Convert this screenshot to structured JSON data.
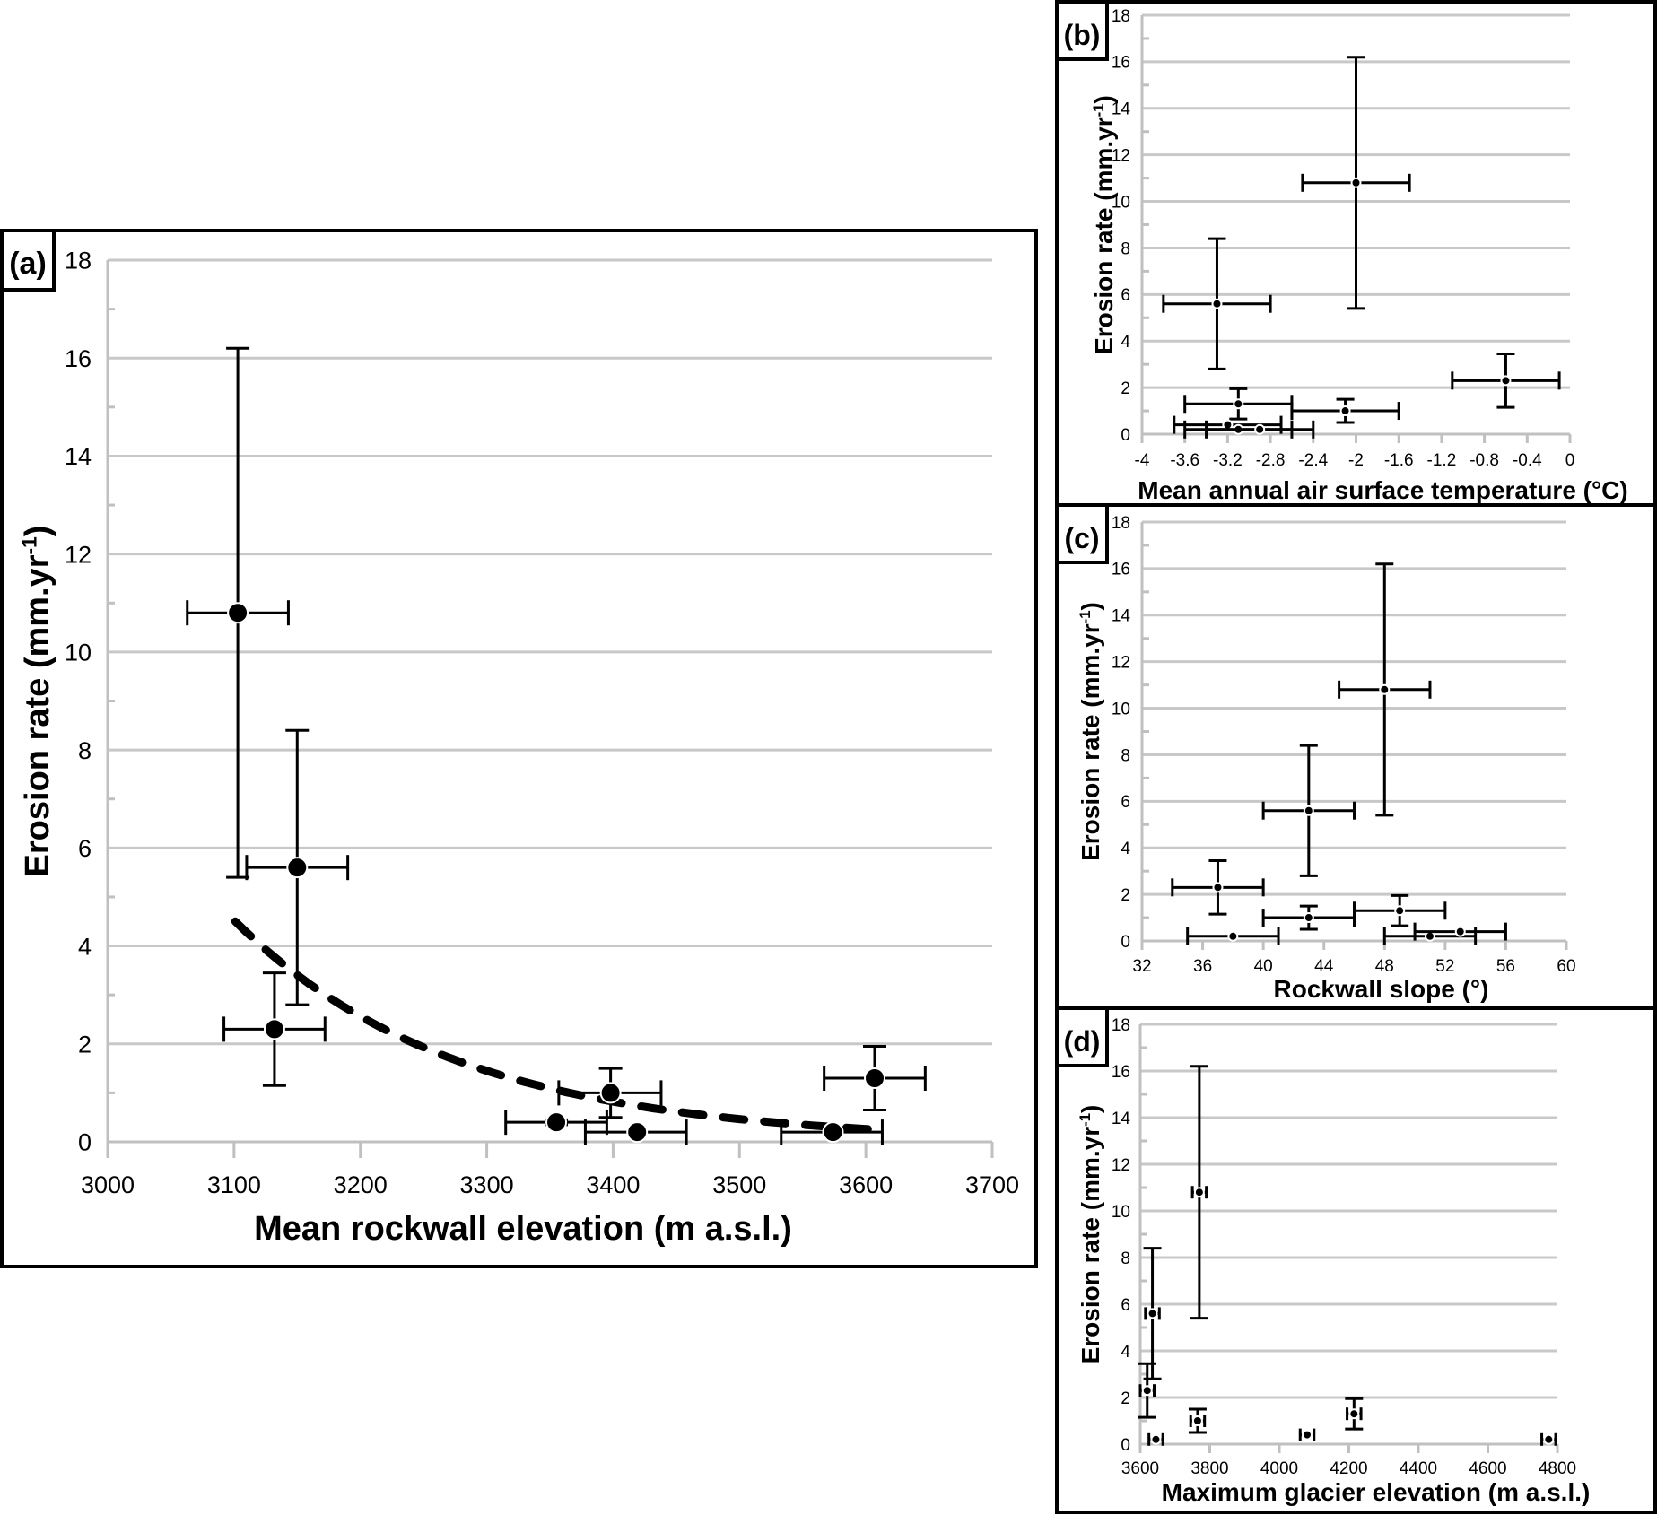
{
  "figure": {
    "panels": [
      {
        "id": "a",
        "label": "(a)"
      },
      {
        "id": "b",
        "label": "(b)"
      },
      {
        "id": "c",
        "label": "(c)"
      },
      {
        "id": "d",
        "label": "(d)"
      }
    ]
  },
  "chart_data": [
    {
      "panel": "(a)",
      "type": "scatter",
      "title": "",
      "xlabel": "Mean rockwall elevation (m a.s.l.)",
      "ylabel": "Erosion rate (mm.yr-1)",
      "ylabel_main": "Erosion rate (mm.yr",
      "ylabel_sup": "-1",
      "ylabel_close": ")",
      "xlim": [
        3000,
        3700
      ],
      "ylim": [
        0,
        18
      ],
      "xticks": [
        3000,
        3100,
        3200,
        3300,
        3400,
        3500,
        3600,
        3700
      ],
      "yticks": [
        0,
        2,
        4,
        6,
        8,
        10,
        12,
        14,
        16,
        18
      ],
      "minor_yticks": true,
      "grid": "horizontal",
      "points": [
        {
          "x": 3103,
          "y": 10.8,
          "xerr": [
            3063,
            3143
          ],
          "yerr": [
            5.4,
            16.2
          ]
        },
        {
          "x": 3150,
          "y": 5.6,
          "xerr": [
            3110,
            3190
          ],
          "yerr": [
            2.8,
            8.4
          ]
        },
        {
          "x": 3132,
          "y": 2.3,
          "xerr": [
            3092,
            3172
          ],
          "yerr": [
            1.15,
            3.45
          ]
        },
        {
          "x": 3355,
          "y": 0.4,
          "xerr": [
            3315,
            3395
          ],
          "yerr": [
            0.35,
            0.45
          ]
        },
        {
          "x": 3398,
          "y": 1.0,
          "xerr": [
            3357,
            3438
          ],
          "yerr": [
            0.5,
            1.5
          ]
        },
        {
          "x": 3419,
          "y": 0.2,
          "xerr": [
            3378,
            3458
          ],
          "yerr": [
            0.17,
            0.23
          ]
        },
        {
          "x": 3574,
          "y": 0.2,
          "xerr": [
            3533,
            3613
          ],
          "yerr": [
            0.17,
            0.23
          ]
        },
        {
          "x": 3607,
          "y": 1.3,
          "xerr": [
            3567,
            3647
          ],
          "yerr": [
            0.65,
            1.95
          ]
        }
      ],
      "trendline": {
        "type": "exponential",
        "style": "dashed",
        "x_range": [
          3101,
          3609
        ],
        "y_start": 4.5,
        "y_end": 0.25
      }
    },
    {
      "panel": "(b)",
      "type": "scatter",
      "title": "",
      "xlabel": "Mean annual air surface temperature (°C)",
      "ylabel": "Erosion rate (mm.yr-1)",
      "ylabel_main": "Erosion rate (mm.yr",
      "ylabel_sup": "-1",
      "ylabel_close": ")",
      "xlim": [
        -4,
        0
      ],
      "ylim": [
        0,
        18
      ],
      "xticks": [
        -4,
        -3.6,
        -3.2,
        -2.8,
        -2.4,
        -2,
        -1.6,
        -1.2,
        -0.8,
        -0.4,
        0
      ],
      "xtick_labels": [
        "-4",
        "-3.6",
        "-3.2",
        "-2.8",
        "-2.4",
        "-2",
        "-1.6",
        "-1.2",
        "-0.8",
        "-0.4",
        "0"
      ],
      "yticks": [
        0,
        2,
        4,
        6,
        8,
        10,
        12,
        14,
        16,
        18
      ],
      "grid": "horizontal",
      "points": [
        {
          "x": -3.3,
          "y": 5.6,
          "xerr": [
            -3.8,
            -2.8
          ],
          "yerr": [
            2.8,
            8.4
          ]
        },
        {
          "x": -2.0,
          "y": 10.8,
          "xerr": [
            -2.5,
            -1.5
          ],
          "yerr": [
            5.4,
            16.2
          ]
        },
        {
          "x": -0.6,
          "y": 2.3,
          "xerr": [
            -1.1,
            -0.1
          ],
          "yerr": [
            1.15,
            3.45
          ]
        },
        {
          "x": -3.1,
          "y": 1.3,
          "xerr": [
            -3.6,
            -2.6
          ],
          "yerr": [
            0.65,
            1.95
          ]
        },
        {
          "x": -2.1,
          "y": 1.0,
          "xerr": [
            -2.6,
            -1.6
          ],
          "yerr": [
            0.5,
            1.5
          ]
        },
        {
          "x": -3.2,
          "y": 0.4,
          "xerr": [
            -3.7,
            -2.7
          ],
          "yerr": [
            0.35,
            0.45
          ]
        },
        {
          "x": -3.1,
          "y": 0.2,
          "xerr": [
            -3.6,
            -2.6
          ],
          "yerr": [
            0.17,
            0.23
          ]
        },
        {
          "x": -2.9,
          "y": 0.2,
          "xerr": [
            -3.4,
            -2.4
          ],
          "yerr": [
            0.17,
            0.23
          ]
        }
      ]
    },
    {
      "panel": "(c)",
      "type": "scatter",
      "title": "",
      "xlabel": "Rockwall slope (°)",
      "ylabel": "Erosion rate (mm.yr-1)",
      "ylabel_main": "Erosion rate (mm.yr",
      "ylabel_sup": "-1",
      "ylabel_close": ")",
      "xlim": [
        32,
        60
      ],
      "ylim": [
        0,
        18
      ],
      "xticks": [
        32,
        36,
        40,
        44,
        48,
        52,
        56,
        60
      ],
      "yticks": [
        0,
        2,
        4,
        6,
        8,
        10,
        12,
        14,
        16,
        18
      ],
      "grid": "horizontal",
      "points": [
        {
          "x": 48,
          "y": 10.8,
          "xerr": [
            45,
            51
          ],
          "yerr": [
            5.4,
            16.2
          ]
        },
        {
          "x": 43,
          "y": 5.6,
          "xerr": [
            40,
            46
          ],
          "yerr": [
            2.8,
            8.4
          ]
        },
        {
          "x": 37,
          "y": 2.3,
          "xerr": [
            34,
            40
          ],
          "yerr": [
            1.15,
            3.45
          ]
        },
        {
          "x": 43,
          "y": 1.0,
          "xerr": [
            40,
            46
          ],
          "yerr": [
            0.5,
            1.5
          ]
        },
        {
          "x": 49,
          "y": 1.3,
          "xerr": [
            46,
            52
          ],
          "yerr": [
            0.65,
            1.95
          ]
        },
        {
          "x": 38,
          "y": 0.2,
          "xerr": [
            35,
            41
          ],
          "yerr": [
            0.17,
            0.23
          ]
        },
        {
          "x": 51,
          "y": 0.2,
          "xerr": [
            48,
            54
          ],
          "yerr": [
            0.17,
            0.23
          ]
        },
        {
          "x": 53,
          "y": 0.4,
          "xerr": [
            50,
            56
          ],
          "yerr": [
            0.35,
            0.45
          ]
        }
      ]
    },
    {
      "panel": "(d)",
      "type": "scatter",
      "title": "",
      "xlabel": "Maximum glacier elevation (m a.s.l.)",
      "ylabel": "Erosion rate (mm.yr-1)",
      "ylabel_main": "Erosion rate (mm.yr",
      "ylabel_sup": "-1",
      "ylabel_close": ")",
      "xlim": [
        3600,
        4800
      ],
      "ylim": [
        0,
        18
      ],
      "xticks": [
        3600,
        3800,
        4000,
        4200,
        4400,
        4600,
        4800
      ],
      "yticks": [
        0,
        2,
        4,
        6,
        8,
        10,
        12,
        14,
        16,
        18
      ],
      "grid": "horizontal",
      "points": [
        {
          "x": 3770,
          "y": 10.8,
          "xerr": [
            3750,
            3790
          ],
          "yerr": [
            5.4,
            16.2
          ]
        },
        {
          "x": 3635,
          "y": 5.6,
          "xerr": [
            3615,
            3655
          ],
          "yerr": [
            2.8,
            8.4
          ]
        },
        {
          "x": 3620,
          "y": 2.3,
          "xerr": [
            3600,
            3640
          ],
          "yerr": [
            1.15,
            3.45
          ]
        },
        {
          "x": 3765,
          "y": 1.0,
          "xerr": [
            3745,
            3785
          ],
          "yerr": [
            0.5,
            1.5
          ]
        },
        {
          "x": 4215,
          "y": 1.3,
          "xerr": [
            4195,
            4235
          ],
          "yerr": [
            0.65,
            1.95
          ]
        },
        {
          "x": 3645,
          "y": 0.2,
          "xerr": [
            3625,
            3665
          ],
          "yerr": [
            0.17,
            0.23
          ]
        },
        {
          "x": 4080,
          "y": 0.4,
          "xerr": [
            4060,
            4100
          ],
          "yerr": [
            0.35,
            0.45
          ]
        },
        {
          "x": 4775,
          "y": 0.2,
          "xerr": [
            4755,
            4795
          ],
          "yerr": [
            0.17,
            0.23
          ]
        }
      ]
    }
  ]
}
